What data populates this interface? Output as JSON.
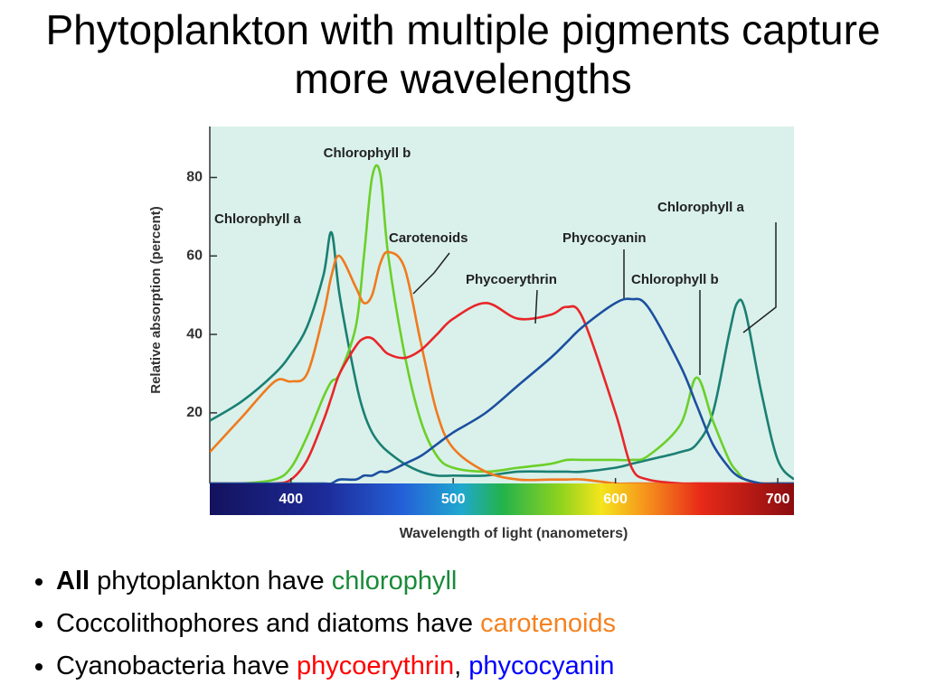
{
  "title": "Phytoplankton with multiple pigments capture more wavelengths",
  "chart_data": {
    "type": "line",
    "y_label": "Relative absorption (percent)",
    "x_label": "Wavelength of light (nanometers)",
    "x": [
      350,
      370,
      390,
      400,
      410,
      420,
      425,
      430,
      440,
      445,
      450,
      455,
      460,
      470,
      480,
      490,
      500,
      520,
      540,
      560,
      570,
      580,
      600,
      610,
      620,
      640,
      650,
      660,
      670,
      675,
      680,
      690,
      700,
      710
    ],
    "series": [
      {
        "color": "#1b7f74",
        "values": [
          18,
          23,
          30,
          35,
          42,
          55,
          66,
          50,
          28,
          20,
          15,
          12,
          10,
          7,
          5,
          4,
          4,
          4,
          5,
          5,
          5,
          5,
          6,
          7,
          8,
          10,
          12,
          20,
          40,
          48,
          46,
          25,
          8,
          3
        ]
      },
      {
        "color": "#6ccf2a",
        "values": [
          2,
          2,
          3,
          6,
          14,
          24,
          28,
          30,
          42,
          60,
          80,
          81,
          60,
          35,
          18,
          9,
          6,
          5,
          6,
          7,
          8,
          8,
          8,
          8,
          9,
          17,
          29,
          18,
          8,
          5,
          3,
          2,
          2,
          2
        ]
      },
      {
        "color": "#f07a1e",
        "values": [
          10,
          19,
          28,
          28,
          30,
          45,
          55,
          60,
          52,
          48,
          50,
          58,
          61,
          57,
          38,
          20,
          11,
          5,
          3,
          3,
          3,
          3,
          2,
          2,
          2,
          2,
          2,
          2,
          2,
          2,
          2,
          2,
          2,
          2
        ]
      },
      {
        "color": "#e8262a",
        "values": [
          2,
          2,
          2,
          3,
          8,
          18,
          24,
          30,
          37,
          39,
          39,
          37,
          35,
          34,
          36,
          40,
          44,
          48,
          44,
          45,
          47,
          44,
          20,
          6,
          3,
          2,
          2,
          2,
          2,
          2,
          2,
          2,
          2,
          2
        ]
      },
      {
        "color": "#1c4fa0",
        "values": [
          2,
          2,
          2,
          2,
          2,
          2,
          2,
          3,
          3,
          4,
          4,
          5,
          5,
          7,
          9,
          12,
          15,
          20,
          27,
          34,
          38,
          42,
          48,
          49,
          47,
          32,
          22,
          12,
          6,
          4,
          3,
          2,
          2,
          2
        ]
      }
    ],
    "annotations": [
      "Chlorophyll b",
      "Chlorophyll a",
      "Carotenoids",
      "Phycocyanin",
      "Phycoerythrin",
      "Chlorophyll a",
      "Chlorophyll b"
    ],
    "xlim": [
      350,
      710
    ],
    "ylim": [
      2,
      93
    ],
    "xticks": [
      400,
      500,
      600,
      700
    ],
    "yticks": [
      20,
      40,
      60,
      80
    ]
  },
  "bullets": [
    [
      {
        "text": "All",
        "bold": true
      },
      {
        "text": " phytoplankton have "
      },
      {
        "text": "chlorophyll",
        "color": "#1a8a3a"
      }
    ],
    [
      {
        "text": "Coccolithophores and diatoms have "
      },
      {
        "text": "carotenoids",
        "color": "#f58220"
      }
    ],
    [
      {
        "text": "Cyanobacteria have "
      },
      {
        "text": "phycoerythrin",
        "color": "#ff0000"
      },
      {
        "text": ", "
      },
      {
        "text": "phycocyanin",
        "color": "#0000ff"
      }
    ]
  ]
}
